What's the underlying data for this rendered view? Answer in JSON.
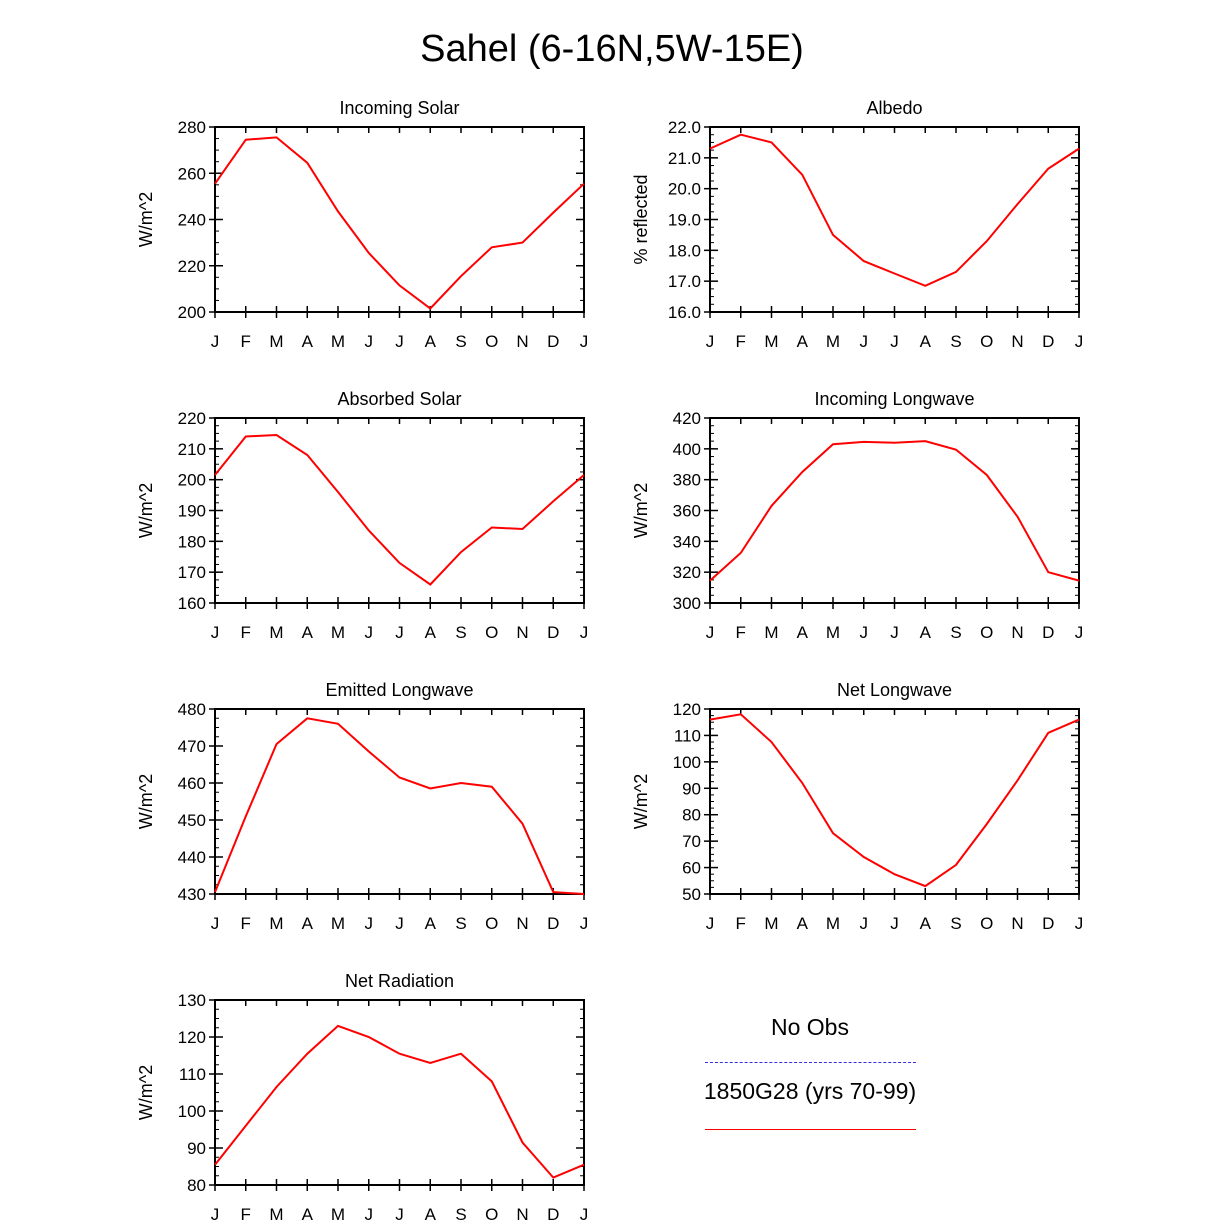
{
  "title": "Sahel (6-16N,5W-15E)",
  "months": [
    "J",
    "F",
    "M",
    "A",
    "M",
    "J",
    "J",
    "A",
    "S",
    "O",
    "N",
    "D",
    "J"
  ],
  "legend": {
    "obs_label": "No Obs",
    "obs_color": "#3333dd",
    "model_label": "1850G28 (yrs 70-99)",
    "model_color": "#ff0000"
  },
  "chart_data": [
    {
      "type": "line",
      "title": "Incoming Solar",
      "ylabel": "W/m^2",
      "ylim": [
        200,
        280
      ],
      "yticks": [
        "200",
        "220",
        "240",
        "260",
        "280"
      ],
      "minor_step": 5,
      "values": [
        255.5,
        274.5,
        275.5,
        264.5,
        243.5,
        225.5,
        211.5,
        201.5,
        215.5,
        228.0,
        230.0,
        243.0,
        255.5
      ]
    },
    {
      "type": "line",
      "title": "Albedo",
      "ylabel": "% reflected",
      "ylim": [
        16,
        22
      ],
      "yticks": [
        "16.0",
        "17.0",
        "18.0",
        "19.0",
        "20.0",
        "21.0",
        "22.0"
      ],
      "minor_step": 0.25,
      "values": [
        21.3,
        21.75,
        21.5,
        20.45,
        18.5,
        17.65,
        17.25,
        16.85,
        17.3,
        18.3,
        19.5,
        20.65,
        21.3
      ]
    },
    {
      "type": "line",
      "title": "Absorbed Solar",
      "ylabel": "W/m^2",
      "ylim": [
        160,
        220
      ],
      "yticks": [
        "160",
        "170",
        "180",
        "190",
        "200",
        "210",
        "220"
      ],
      "minor_step": 2.5,
      "values": [
        201.5,
        214.0,
        214.5,
        208.0,
        196.0,
        183.5,
        173.0,
        166.0,
        176.5,
        184.5,
        184.0,
        193.0,
        201.5
      ]
    },
    {
      "type": "line",
      "title": "Incoming Longwave",
      "ylabel": "W/m^2",
      "ylim": [
        300,
        420
      ],
      "yticks": [
        "300",
        "320",
        "340",
        "360",
        "380",
        "400",
        "420"
      ],
      "minor_step": 5,
      "values": [
        314.5,
        332.5,
        363.0,
        385.0,
        403.0,
        404.5,
        404.0,
        405.0,
        399.5,
        383.0,
        356.0,
        320.0,
        314.5
      ]
    },
    {
      "type": "line",
      "title": "Emitted Longwave",
      "ylabel": "W/m^2",
      "ylim": [
        430,
        480
      ],
      "yticks": [
        "430",
        "440",
        "450",
        "460",
        "470",
        "480"
      ],
      "minor_step": 2.5,
      "values": [
        430.5,
        451.0,
        470.5,
        477.5,
        476.0,
        468.5,
        461.5,
        458.5,
        460.0,
        459.0,
        449.0,
        430.5,
        430.0
      ]
    },
    {
      "type": "line",
      "title": "Net Longwave",
      "ylabel": "W/m^2",
      "ylim": [
        50,
        120
      ],
      "yticks": [
        "50",
        "60",
        "70",
        "80",
        "90",
        "100",
        "110",
        "120"
      ],
      "minor_step": 2.5,
      "values": [
        116.0,
        118.0,
        107.5,
        92.0,
        73.0,
        64.0,
        57.5,
        53.0,
        61.0,
        76.5,
        93.0,
        111.0,
        116.0
      ]
    },
    {
      "type": "line",
      "title": "Net Radiation",
      "ylabel": "W/m^2",
      "ylim": [
        80,
        130
      ],
      "yticks": [
        "80",
        "90",
        "100",
        "110",
        "120",
        "130"
      ],
      "minor_step": 2.5,
      "values": [
        85.5,
        96.0,
        106.5,
        115.5,
        123.0,
        120.0,
        115.5,
        113.0,
        115.5,
        108.0,
        91.5,
        82.0,
        85.5
      ]
    }
  ]
}
